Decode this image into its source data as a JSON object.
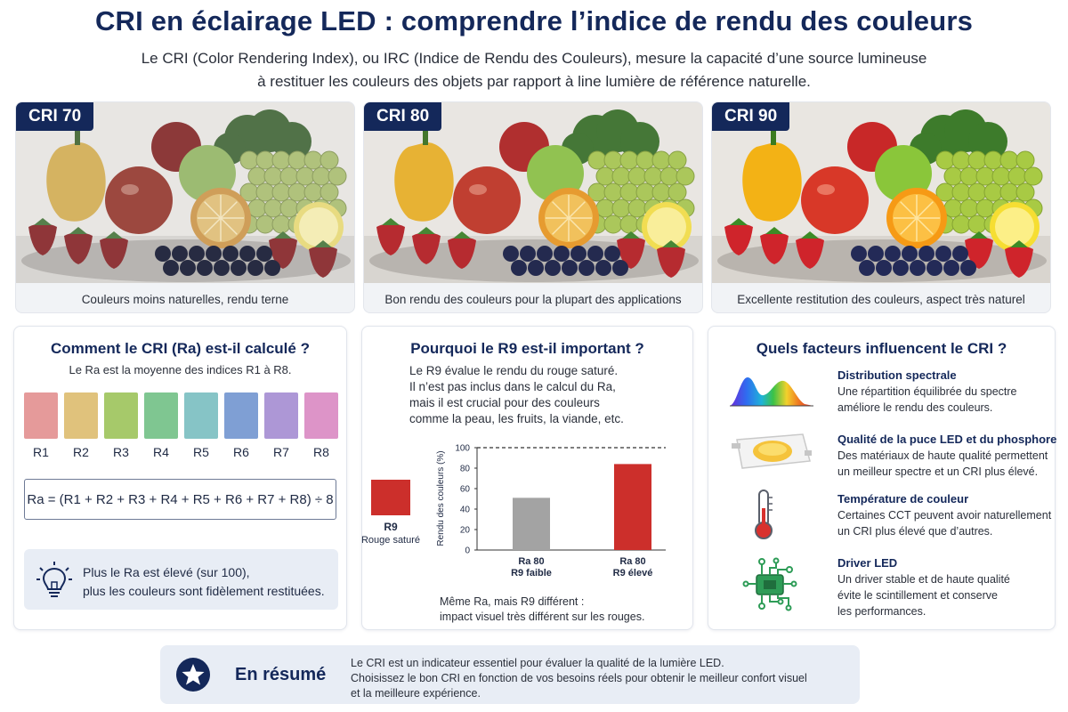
{
  "header": {
    "title": "CRI en éclairage LED : comprendre l’indice de rendu des couleurs",
    "intro_line1": "Le CRI (Color Rendering Index), ou IRC (Indice de Rendu des Couleurs), mesure la capacité d’une source lumineuse",
    "intro_line2": "à restituer les couleurs des objets par rapport à line lumière de référence naturelle."
  },
  "comparison": [
    {
      "badge": "CRI 70",
      "caption": "Couleurs moins naturelles, rendu terne"
    },
    {
      "badge": "CRI 80",
      "caption": "Bon rendu des couleurs pour la plupart des applications"
    },
    {
      "badge": "CRI 90",
      "caption": "Excellente restitution des couleurs, aspect très naturel"
    }
  ],
  "calc_panel": {
    "title": "Comment le CRI (Ra) est-il calculé ?",
    "subtitle": "Le Ra est la moyenne des indices R1 à R8.",
    "swatches": [
      {
        "label": "R1",
        "color": "#e59a9a"
      },
      {
        "label": "R2",
        "color": "#e0c27c"
      },
      {
        "label": "R3",
        "color": "#a6c96a"
      },
      {
        "label": "R4",
        "color": "#7fc691"
      },
      {
        "label": "R5",
        "color": "#86c4c6"
      },
      {
        "label": "R6",
        "color": "#7f9fd4"
      },
      {
        "label": "R7",
        "color": "#ad97d6"
      },
      {
        "label": "R8",
        "color": "#dd94c8"
      }
    ],
    "formula": "Ra = (R1 + R2 + R3 + R4 + R5 + R6 + R7 + R8) ÷ 8",
    "tip_line1": "Plus le Ra est élevé (sur 100),",
    "tip_line2": "plus les couleurs sont fidèlement restituées."
  },
  "r9_panel": {
    "title": "Pourquoi le R9 est-il important ?",
    "text_line1": "Le R9 évalue le rendu du rouge saturé.",
    "text_line2": "Il n’est pas inclus dans le calcul du Ra,",
    "text_line3": "mais il est crucial pour des couleurs",
    "text_line4": "comme la peau, les fruits, la viande, etc.",
    "swatch_label": "R9",
    "swatch_sublabel": "Rouge saturé",
    "note_line1": "Même Ra, mais R9 différent :",
    "note_line2": "impact visuel très différent sur les rouges."
  },
  "chart_data": {
    "type": "bar",
    "ylabel": "Rendu des couleurs (%)",
    "ylim": [
      0,
      100
    ],
    "yticks": [
      "0",
      "20",
      "40",
      "60",
      "80",
      "100"
    ],
    "reference_line": 100,
    "categories": [
      {
        "line1": "Ra 80",
        "line2": "R9 faible"
      },
      {
        "line1": "Ra 80",
        "line2": "R9 élevé"
      }
    ],
    "values": [
      51,
      84
    ],
    "colors": [
      "#a3a3a3",
      "#cc2f2b"
    ]
  },
  "factors_panel": {
    "title": "Quels facteurs influencent le CRI ?",
    "items": [
      {
        "title": "Distribution spectrale",
        "line1": "Une répartition équilibrée du spectre",
        "line2": "améliore le rendu des couleurs.",
        "line3": "",
        "icon": "spectrum-icon"
      },
      {
        "title": "Qualité de la puce LED et du phosphore",
        "line1": "Des matériaux de haute qualité permettent",
        "line2": "un meilleur spectre et un CRI plus élevé.",
        "line3": "",
        "icon": "led-chip-icon"
      },
      {
        "title": "Température de couleur",
        "line1": "Certaines CCT peuvent avoir naturellement",
        "line2": "un CRI plus élevé que d’autres.",
        "line3": "",
        "icon": "thermometer-icon"
      },
      {
        "title": "Driver LED",
        "line1": "Un driver stable et de haute qualité",
        "line2": "évite le scintillement et conserve",
        "line3": "les performances.",
        "icon": "circuit-board-icon"
      }
    ]
  },
  "summary": {
    "title": "En résumé",
    "line1": "Le CRI est un indicateur essentiel pour évaluer la qualité de la lumière LED.",
    "line2": "Choisissez le bon CRI en fonction de vos besoins réels pour obtenir le meilleur confort visuel",
    "line3": "et la meilleure expérience."
  },
  "colors": {
    "navy": "#14285a",
    "panel_bg": "#e8edf5",
    "r9_red": "#cc2f2b",
    "bar_grey": "#a3a3a3"
  }
}
